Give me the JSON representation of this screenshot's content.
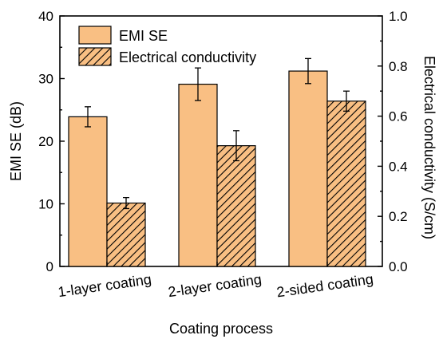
{
  "chart_data": {
    "type": "bar",
    "xlabel": "Coating process",
    "ylabel_left": "EMI SE (dB)",
    "ylabel_right": "Electrical conductivity (S/cm)",
    "categories": [
      "1-layer coating",
      "2-layer coating",
      "2-sided coating"
    ],
    "y_left": {
      "lim": [
        0,
        40
      ],
      "ticks": [
        0,
        10,
        20,
        30,
        40
      ],
      "tick_labels": [
        "0",
        "10",
        "20",
        "30",
        "40"
      ]
    },
    "y_right": {
      "lim": [
        0,
        1.0
      ],
      "ticks": [
        0,
        0.2,
        0.4,
        0.6,
        0.8,
        1.0
      ],
      "tick_labels": [
        "0.0",
        "0.2",
        "0.4",
        "0.6",
        "0.8",
        "1.0"
      ]
    },
    "series": [
      {
        "name": "EMI SE",
        "axis": "left",
        "values": [
          23.9,
          29.1,
          31.2
        ],
        "errors": [
          1.6,
          2.6,
          2.0
        ],
        "fill": "#f9bf83",
        "pattern": "solid"
      },
      {
        "name": "Electrical conductivity",
        "axis": "right",
        "values": [
          0.253,
          0.482,
          0.66
        ],
        "errors": [
          0.022,
          0.06,
          0.04
        ],
        "fill": "#f9bf83",
        "pattern": "diagonal-hatch"
      }
    ],
    "legend": {
      "position": "top-left",
      "entries": [
        "EMI SE",
        "Electrical conductivity"
      ]
    },
    "grid": false
  }
}
